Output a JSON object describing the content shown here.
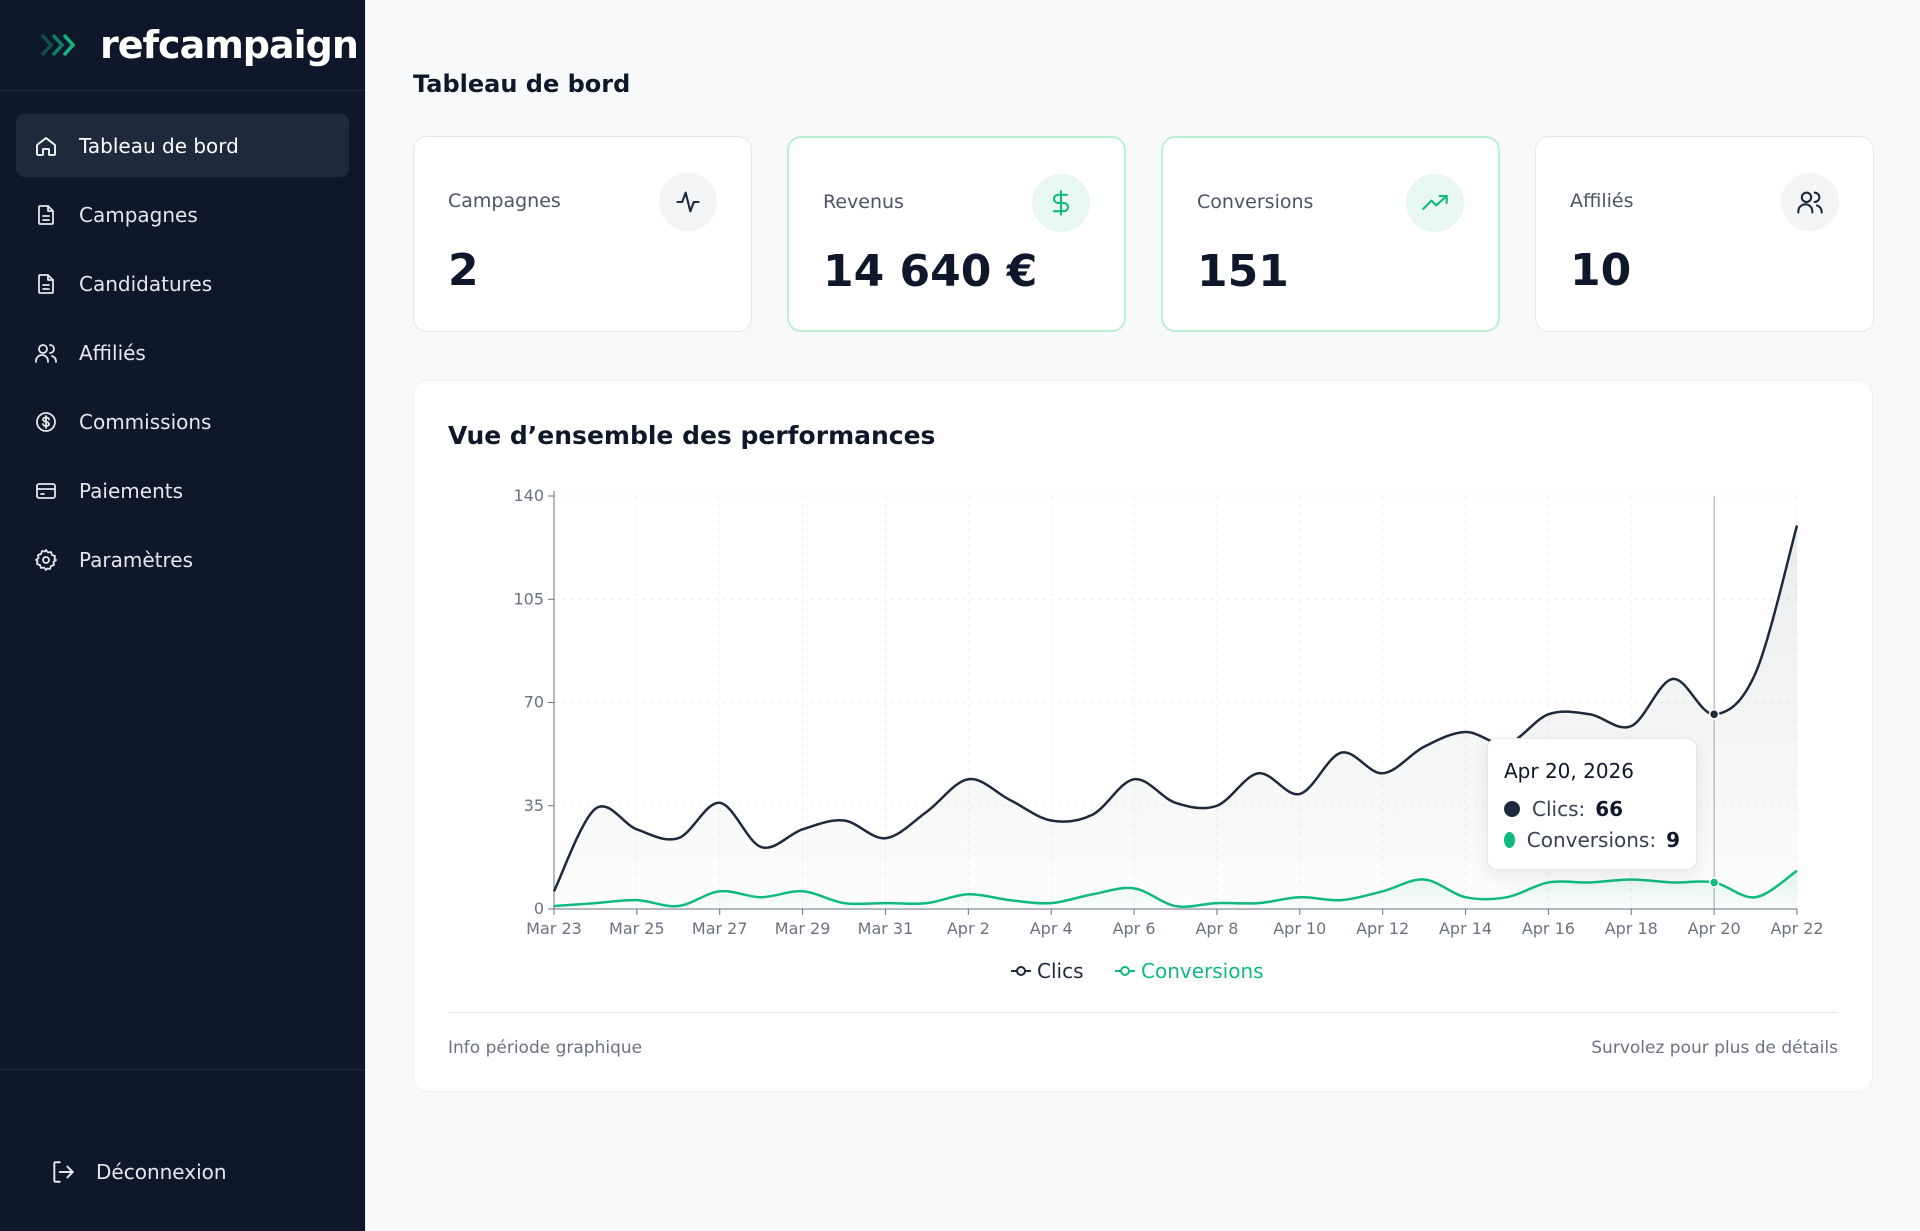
{
  "brand": {
    "name": "refcampaign"
  },
  "sidebar": {
    "items": [
      {
        "label": "Tableau de bord",
        "icon": "home-icon",
        "active": true
      },
      {
        "label": "Campagnes",
        "icon": "document-icon"
      },
      {
        "label": "Candidatures",
        "icon": "document-icon"
      },
      {
        "label": "Affiliés",
        "icon": "users-icon"
      },
      {
        "label": "Commissions",
        "icon": "dollar-circle-icon"
      },
      {
        "label": "Paiements",
        "icon": "credit-card-icon"
      },
      {
        "label": "Paramètres",
        "icon": "gear-icon"
      }
    ],
    "logout_label": "Déconnexion"
  },
  "page": {
    "title": "Tableau de bord"
  },
  "stats": [
    {
      "label": "Campagnes",
      "value": "2",
      "icon": "activity-icon"
    },
    {
      "label": "Revenus",
      "value": "14 640 €",
      "icon": "dollar-icon"
    },
    {
      "label": "Conversions",
      "value": "151",
      "icon": "trending-up-icon"
    },
    {
      "label": "Affiliés",
      "value": "10",
      "icon": "users-icon"
    }
  ],
  "chart": {
    "title": "Vue d’ensemble des performances",
    "footer_left": "Info période graphique",
    "footer_right": "Survolez pour plus de détails"
  },
  "tooltip": {
    "date": "Apr 20, 2026",
    "clics_label": "Clics:",
    "clics_value": "66",
    "conversions_label": "Conversions:",
    "conversions_value": "9"
  },
  "colors": {
    "clics": "#1e293b",
    "conversions": "#10b981",
    "sidebar_bg": "#0f172a"
  },
  "chart_data": {
    "type": "line",
    "x": [
      "Mar 23",
      "Mar 24",
      "Mar 25",
      "Mar 26",
      "Mar 27",
      "Mar 28",
      "Mar 29",
      "Mar 30",
      "Mar 31",
      "Apr 1",
      "Apr 2",
      "Apr 3",
      "Apr 4",
      "Apr 5",
      "Apr 6",
      "Apr 7",
      "Apr 8",
      "Apr 9",
      "Apr 10",
      "Apr 11",
      "Apr 12",
      "Apr 13",
      "Apr 14",
      "Apr 15",
      "Apr 16",
      "Apr 17",
      "Apr 18",
      "Apr 19",
      "Apr 20",
      "Apr 21",
      "Apr 22"
    ],
    "tick_labels": [
      "Mar 23",
      "Mar 25",
      "Mar 27",
      "Mar 29",
      "Mar 31",
      "Apr 2",
      "Apr 4",
      "Apr 6",
      "Apr 8",
      "Apr 10",
      "Apr 12",
      "Apr 14",
      "Apr 16",
      "Apr 18",
      "Apr 20",
      "Apr 22"
    ],
    "series": [
      {
        "name": "Clics",
        "values": [
          6,
          34,
          27,
          24,
          36,
          21,
          27,
          30,
          24,
          33,
          44,
          37,
          30,
          32,
          44,
          36,
          35,
          46,
          39,
          53,
          46,
          55,
          60,
          56,
          66,
          66,
          62,
          78,
          66,
          80,
          130
        ]
      },
      {
        "name": "Conversions",
        "values": [
          1,
          2,
          3,
          1,
          6,
          4,
          6,
          2,
          2,
          2,
          5,
          3,
          2,
          5,
          7,
          1,
          2,
          2,
          4,
          3,
          6,
          10,
          4,
          4,
          9,
          9,
          10,
          9,
          9,
          4,
          13
        ]
      }
    ],
    "ylim": [
      0,
      140
    ],
    "yticks": [
      0,
      35,
      70,
      105,
      140
    ],
    "grid": true,
    "legend": "bottom",
    "hover_index": 28
  }
}
